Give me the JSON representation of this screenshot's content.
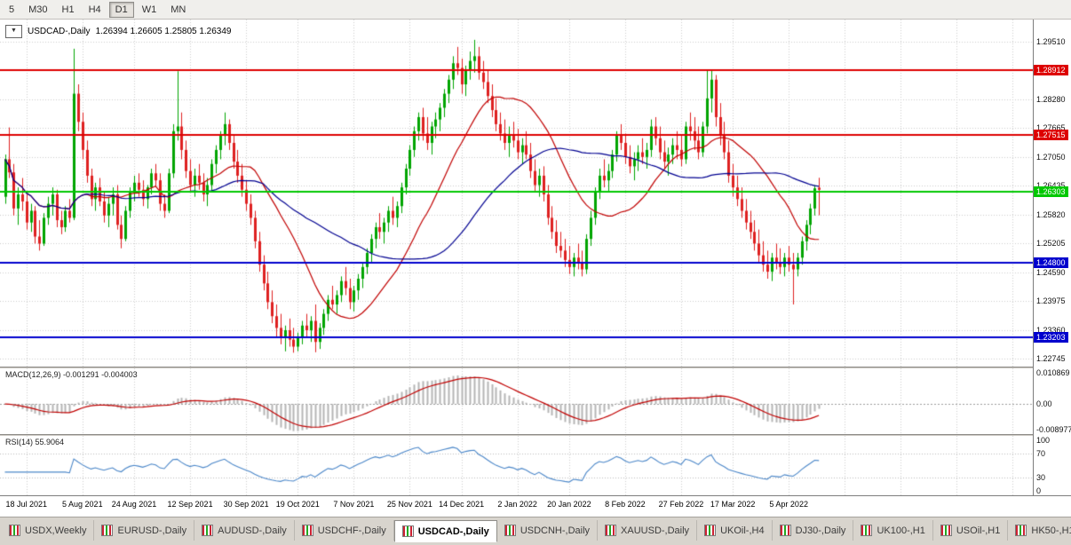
{
  "toolbar": {
    "timeframe_buttons": [
      {
        "label": "5",
        "active": false
      },
      {
        "label": "M30",
        "active": false
      },
      {
        "label": "H1",
        "active": false
      },
      {
        "label": "H4",
        "active": false
      },
      {
        "label": "D1",
        "active": true
      },
      {
        "label": "W1",
        "active": false
      },
      {
        "label": "MN",
        "active": false
      }
    ]
  },
  "chart": {
    "symbol_label": "USDCAD-,Daily",
    "ohlc_text": "1.26394 1.26605 1.25805 1.26349",
    "dropdown_icon": "▼"
  },
  "colors": {
    "candle_up": "#00a400",
    "candle_down": "#de2020",
    "grid": "#cdcdcd",
    "background": "#ffffff"
  },
  "chart_data": {
    "type": "candlestick",
    "title": "USDCAD-,Daily",
    "ylim": [
      1.22574,
      1.29984
    ],
    "price_ticks": [
      "1.29510",
      "1.28280",
      "1.27665",
      "1.27050",
      "1.26435",
      "1.25820",
      "1.25205",
      "1.24590",
      "1.23975",
      "1.23360",
      "1.22745"
    ],
    "hlines": [
      {
        "price": 1.28912,
        "label": "1.28912",
        "color": "#dd0000"
      },
      {
        "price": 1.27515,
        "label": "1.27515",
        "color": "#dd0000"
      },
      {
        "price": 1.26303,
        "label": "1.26303",
        "color": "#00c800"
      },
      {
        "price": 1.248,
        "label": "1.24800",
        "color": "#0000cd"
      },
      {
        "price": 1.23203,
        "label": "1.23203",
        "color": "#0000cd"
      }
    ],
    "date_labels": [
      "18 Jul 2021",
      "5 Aug 2021",
      "24 Aug 2021",
      "12 Sep 2021",
      "30 Sep 2021",
      "19 Oct 2021",
      "7 Nov 2021",
      "25 Nov 2021",
      "14 Dec 2021",
      "2 Jan 2022",
      "20 Jan 2022",
      "8 Feb 2022",
      "27 Feb 2022",
      "17 Mar 2022",
      "5 Apr 2022"
    ],
    "date_label_indices": [
      5,
      18,
      30,
      43,
      56,
      68,
      81,
      94,
      106,
      119,
      131,
      144,
      157,
      169,
      182
    ],
    "moving_averages": [
      {
        "period": 20,
        "color": "#c00000",
        "name": "ma-fast"
      },
      {
        "period": 45,
        "color": "#000090",
        "name": "ma-slow"
      }
    ],
    "candles": [
      [
        1.262,
        1.271,
        1.2605,
        1.27
      ],
      [
        1.27,
        1.2768,
        1.266,
        1.2672
      ],
      [
        1.2672,
        1.269,
        1.258,
        1.2595
      ],
      [
        1.2595,
        1.264,
        1.256,
        1.2625
      ],
      [
        1.2625,
        1.266,
        1.259,
        1.261
      ],
      [
        1.261,
        1.2625,
        1.255,
        1.2565
      ],
      [
        1.2565,
        1.2605,
        1.2545,
        1.259
      ],
      [
        1.259,
        1.26,
        1.252,
        1.2535
      ],
      [
        1.2535,
        1.257,
        1.2505,
        1.252
      ],
      [
        1.252,
        1.2585,
        1.2515,
        1.2575
      ],
      [
        1.2575,
        1.262,
        1.256,
        1.2605
      ],
      [
        1.2605,
        1.264,
        1.258,
        1.2625
      ],
      [
        1.2625,
        1.2635,
        1.2555,
        1.257
      ],
      [
        1.257,
        1.259,
        1.254,
        1.2555
      ],
      [
        1.2555,
        1.26,
        1.2545,
        1.259
      ],
      [
        1.259,
        1.2615,
        1.2565,
        1.2575
      ],
      [
        1.2575,
        1.2936,
        1.257,
        1.284
      ],
      [
        1.284,
        1.286,
        1.276,
        1.278
      ],
      [
        1.278,
        1.28,
        1.27,
        1.272
      ],
      [
        1.272,
        1.274,
        1.265,
        1.2665
      ],
      [
        1.2665,
        1.268,
        1.26,
        1.2615
      ],
      [
        1.2615,
        1.265,
        1.259,
        1.264
      ],
      [
        1.264,
        1.266,
        1.26,
        1.261
      ],
      [
        1.261,
        1.263,
        1.2565,
        1.258
      ],
      [
        1.258,
        1.262,
        1.2555,
        1.2605
      ],
      [
        1.2605,
        1.264,
        1.258,
        1.2625
      ],
      [
        1.2625,
        1.2645,
        1.255,
        1.256
      ],
      [
        1.256,
        1.258,
        1.251,
        1.253
      ],
      [
        1.253,
        1.26,
        1.2525,
        1.259
      ],
      [
        1.259,
        1.264,
        1.2575,
        1.263
      ],
      [
        1.263,
        1.2665,
        1.261,
        1.265
      ],
      [
        1.265,
        1.267,
        1.262,
        1.2635
      ],
      [
        1.2635,
        1.2655,
        1.26,
        1.2615
      ],
      [
        1.2615,
        1.2645,
        1.2595,
        1.264
      ],
      [
        1.264,
        1.268,
        1.2625,
        1.267
      ],
      [
        1.267,
        1.269,
        1.264,
        1.2655
      ],
      [
        1.2655,
        1.267,
        1.259,
        1.2605
      ],
      [
        1.2605,
        1.2625,
        1.2575,
        1.259
      ],
      [
        1.259,
        1.268,
        1.2585,
        1.267
      ],
      [
        1.267,
        1.2775,
        1.266,
        1.276
      ],
      [
        1.276,
        1.2888,
        1.274,
        1.277
      ],
      [
        1.277,
        1.28,
        1.27,
        1.272
      ],
      [
        1.272,
        1.274,
        1.266,
        1.2675
      ],
      [
        1.2675,
        1.27,
        1.263,
        1.2645
      ],
      [
        1.2645,
        1.268,
        1.262,
        1.2665
      ],
      [
        1.2665,
        1.269,
        1.2635,
        1.265
      ],
      [
        1.265,
        1.267,
        1.261,
        1.2625
      ],
      [
        1.2625,
        1.266,
        1.26,
        1.2645
      ],
      [
        1.2645,
        1.27,
        1.263,
        1.269
      ],
      [
        1.269,
        1.273,
        1.267,
        1.272
      ],
      [
        1.272,
        1.276,
        1.27,
        1.275
      ],
      [
        1.275,
        1.28,
        1.273,
        1.2775
      ],
      [
        1.2775,
        1.2785,
        1.272,
        1.2735
      ],
      [
        1.2735,
        1.275,
        1.268,
        1.2695
      ],
      [
        1.2695,
        1.272,
        1.265,
        1.2665
      ],
      [
        1.2665,
        1.269,
        1.262,
        1.2635
      ],
      [
        1.2635,
        1.2655,
        1.259,
        1.2605
      ],
      [
        1.2605,
        1.2625,
        1.256,
        1.2575
      ],
      [
        1.2575,
        1.259,
        1.251,
        1.2525
      ],
      [
        1.2525,
        1.2545,
        1.246,
        1.2475
      ],
      [
        1.2475,
        1.2495,
        1.242,
        1.2435
      ],
      [
        1.2435,
        1.246,
        1.238,
        1.2395
      ],
      [
        1.2395,
        1.242,
        1.235,
        1.2365
      ],
      [
        1.2365,
        1.239,
        1.232,
        1.234
      ],
      [
        1.234,
        1.237,
        1.2305,
        1.232
      ],
      [
        1.232,
        1.2345,
        1.229,
        1.2335
      ],
      [
        1.2335,
        1.236,
        1.23,
        1.2315
      ],
      [
        1.2315,
        1.234,
        1.2287,
        1.23
      ],
      [
        1.23,
        1.233,
        1.229,
        1.232
      ],
      [
        1.232,
        1.2355,
        1.2305,
        1.2345
      ],
      [
        1.2345,
        1.237,
        1.232,
        1.2335
      ],
      [
        1.2335,
        1.2365,
        1.231,
        1.2355
      ],
      [
        1.2355,
        1.239,
        1.2288,
        1.231
      ],
      [
        1.231,
        1.235,
        1.2295,
        1.234
      ],
      [
        1.234,
        1.238,
        1.2325,
        1.237
      ],
      [
        1.237,
        1.241,
        1.2355,
        1.24
      ],
      [
        1.24,
        1.243,
        1.238,
        1.239
      ],
      [
        1.239,
        1.242,
        1.237,
        1.241
      ],
      [
        1.241,
        1.245,
        1.2395,
        1.244
      ],
      [
        1.244,
        1.247,
        1.241,
        1.2425
      ],
      [
        1.2425,
        1.2445,
        1.238,
        1.2395
      ],
      [
        1.2395,
        1.243,
        1.2375,
        1.242
      ],
      [
        1.242,
        1.2455,
        1.24,
        1.2445
      ],
      [
        1.2445,
        1.248,
        1.2425,
        1.247
      ],
      [
        1.247,
        1.251,
        1.2455,
        1.25
      ],
      [
        1.25,
        1.254,
        1.248,
        1.253
      ],
      [
        1.253,
        1.2565,
        1.251,
        1.2555
      ],
      [
        1.2555,
        1.2585,
        1.253,
        1.2545
      ],
      [
        1.2545,
        1.2575,
        1.252,
        1.2565
      ],
      [
        1.2565,
        1.26,
        1.2545,
        1.259
      ],
      [
        1.259,
        1.262,
        1.256,
        1.2575
      ],
      [
        1.2575,
        1.261,
        1.2555,
        1.26
      ],
      [
        1.26,
        1.265,
        1.2585,
        1.264
      ],
      [
        1.264,
        1.269,
        1.2625,
        1.268
      ],
      [
        1.268,
        1.273,
        1.2665,
        1.272
      ],
      [
        1.272,
        1.277,
        1.2705,
        1.276
      ],
      [
        1.276,
        1.28,
        1.274,
        1.279
      ],
      [
        1.279,
        1.281,
        1.274,
        1.2755
      ],
      [
        1.2755,
        1.279,
        1.272,
        1.2735
      ],
      [
        1.2735,
        1.278,
        1.271,
        1.277
      ],
      [
        1.277,
        1.28,
        1.2745,
        1.2785
      ],
      [
        1.2785,
        1.282,
        1.276,
        1.281
      ],
      [
        1.281,
        1.285,
        1.279,
        1.284
      ],
      [
        1.284,
        1.288,
        1.282,
        1.287
      ],
      [
        1.287,
        1.292,
        1.285,
        1.2905
      ],
      [
        1.2905,
        1.294,
        1.288,
        1.2895
      ],
      [
        1.2895,
        1.2915,
        1.284,
        1.286
      ],
      [
        1.286,
        1.29,
        1.2835,
        1.289
      ],
      [
        1.289,
        1.293,
        1.287,
        1.291
      ],
      [
        1.291,
        1.2955,
        1.2885,
        1.292
      ],
      [
        1.292,
        1.294,
        1.287,
        1.2885
      ],
      [
        1.2885,
        1.291,
        1.285,
        1.2865
      ],
      [
        1.2865,
        1.289,
        1.282,
        1.2835
      ],
      [
        1.2835,
        1.286,
        1.279,
        1.2805
      ],
      [
        1.2805,
        1.283,
        1.276,
        1.2775
      ],
      [
        1.2775,
        1.28,
        1.274,
        1.2755
      ],
      [
        1.2755,
        1.2785,
        1.272,
        1.2735
      ],
      [
        1.2735,
        1.277,
        1.2705,
        1.275
      ],
      [
        1.275,
        1.278,
        1.2725,
        1.274
      ],
      [
        1.274,
        1.2765,
        1.27,
        1.2715
      ],
      [
        1.2715,
        1.2745,
        1.269,
        1.273
      ],
      [
        1.273,
        1.276,
        1.27,
        1.271
      ],
      [
        1.271,
        1.2735,
        1.266,
        1.2675
      ],
      [
        1.2675,
        1.27,
        1.263,
        1.2645
      ],
      [
        1.2645,
        1.268,
        1.262,
        1.2665
      ],
      [
        1.2665,
        1.2685,
        1.261,
        1.2625
      ],
      [
        1.2625,
        1.2645,
        1.256,
        1.2575
      ],
      [
        1.2575,
        1.26,
        1.253,
        1.2545
      ],
      [
        1.2545,
        1.257,
        1.25,
        1.2515
      ],
      [
        1.2515,
        1.2545,
        1.249,
        1.2505
      ],
      [
        1.2505,
        1.253,
        1.247,
        1.2485
      ],
      [
        1.2485,
        1.2515,
        1.2455,
        1.247
      ],
      [
        1.247,
        1.25,
        1.245,
        1.249
      ],
      [
        1.249,
        1.252,
        1.2465,
        1.248
      ],
      [
        1.248,
        1.2505,
        1.245,
        1.2465
      ],
      [
        1.2465,
        1.254,
        1.2455,
        1.253
      ],
      [
        1.253,
        1.259,
        1.2515,
        1.2575
      ],
      [
        1.2575,
        1.264,
        1.256,
        1.263
      ],
      [
        1.263,
        1.268,
        1.2615,
        1.2665
      ],
      [
        1.2665,
        1.27,
        1.264,
        1.2655
      ],
      [
        1.2655,
        1.269,
        1.263,
        1.2675
      ],
      [
        1.2675,
        1.272,
        1.266,
        1.271
      ],
      [
        1.271,
        1.276,
        1.2695,
        1.275
      ],
      [
        1.275,
        1.2775,
        1.272,
        1.2735
      ],
      [
        1.2735,
        1.2755,
        1.269,
        1.2705
      ],
      [
        1.2705,
        1.273,
        1.267,
        1.2685
      ],
      [
        1.2685,
        1.2715,
        1.2655,
        1.27
      ],
      [
        1.27,
        1.273,
        1.2675,
        1.2715
      ],
      [
        1.2715,
        1.2745,
        1.269,
        1.2705
      ],
      [
        1.2705,
        1.2735,
        1.268,
        1.272
      ],
      [
        1.272,
        1.2785,
        1.2705,
        1.277
      ],
      [
        1.277,
        1.279,
        1.273,
        1.2745
      ],
      [
        1.2745,
        1.277,
        1.27,
        1.2715
      ],
      [
        1.2715,
        1.274,
        1.268,
        1.2695
      ],
      [
        1.2695,
        1.2725,
        1.2665,
        1.271
      ],
      [
        1.271,
        1.2745,
        1.269,
        1.273
      ],
      [
        1.273,
        1.276,
        1.27,
        1.272
      ],
      [
        1.272,
        1.275,
        1.2685,
        1.27
      ],
      [
        1.27,
        1.278,
        1.269,
        1.277
      ],
      [
        1.277,
        1.28,
        1.274,
        1.276
      ],
      [
        1.276,
        1.279,
        1.272,
        1.274
      ],
      [
        1.274,
        1.277,
        1.27,
        1.2715
      ],
      [
        1.2715,
        1.278,
        1.2705,
        1.277
      ],
      [
        1.277,
        1.2892,
        1.2755,
        1.283
      ],
      [
        1.283,
        1.2889,
        1.28,
        1.287
      ],
      [
        1.287,
        1.288,
        1.277,
        1.279
      ],
      [
        1.279,
        1.282,
        1.273,
        1.275
      ],
      [
        1.275,
        1.278,
        1.27,
        1.2715
      ],
      [
        1.2715,
        1.274,
        1.265,
        1.2665
      ],
      [
        1.2665,
        1.269,
        1.262,
        1.264
      ],
      [
        1.264,
        1.2665,
        1.26,
        1.2615
      ],
      [
        1.2615,
        1.264,
        1.2575,
        1.259
      ],
      [
        1.259,
        1.2615,
        1.255,
        1.2565
      ],
      [
        1.2565,
        1.259,
        1.253,
        1.2545
      ],
      [
        1.2545,
        1.257,
        1.2505,
        1.252
      ],
      [
        1.252,
        1.255,
        1.248,
        1.2495
      ],
      [
        1.2495,
        1.2525,
        1.246,
        1.2475
      ],
      [
        1.2475,
        1.2505,
        1.2445,
        1.246
      ],
      [
        1.246,
        1.25,
        1.244,
        1.249
      ],
      [
        1.249,
        1.252,
        1.2465,
        1.248
      ],
      [
        1.248,
        1.251,
        1.2455,
        1.247
      ],
      [
        1.247,
        1.25,
        1.245,
        1.249
      ],
      [
        1.249,
        1.2515,
        1.246,
        1.2475
      ],
      [
        1.2475,
        1.25,
        1.239,
        1.2465
      ],
      [
        1.2465,
        1.25,
        1.245,
        1.249
      ],
      [
        1.249,
        1.2535,
        1.2475,
        1.2525
      ],
      [
        1.2525,
        1.257,
        1.2505,
        1.256
      ],
      [
        1.256,
        1.2605,
        1.254,
        1.2595
      ],
      [
        1.2595,
        1.2645,
        1.258,
        1.2638
      ],
      [
        1.26394,
        1.26605,
        1.25805,
        1.26349
      ]
    ],
    "indicators": {
      "macd": {
        "label": "MACD(12,26,9)",
        "values_text": "-0.001291 -0.004003",
        "fast": 12,
        "slow": 26,
        "signal": 9,
        "axis_labels": [
          "0.010869",
          "0.00",
          "-0.008977"
        ],
        "ylim": [
          -0.0105,
          0.0125
        ],
        "histogram_color": "#b4b4b4",
        "signal_color": "#c00000"
      },
      "rsi": {
        "label": "RSI(14)",
        "value_text": "55.9064",
        "period": 14,
        "axis_labels": [
          "100",
          "70",
          "30",
          "0"
        ],
        "levels": [
          70,
          30
        ],
        "line_color": "#4a86c8"
      }
    }
  },
  "tabs": [
    {
      "label": "USDX,Weekly",
      "active": false
    },
    {
      "label": "EURUSD-,Daily",
      "active": false
    },
    {
      "label": "AUDUSD-,Daily",
      "active": false
    },
    {
      "label": "USDCHF-,Daily",
      "active": false
    },
    {
      "label": "USDCAD-,Daily",
      "active": true
    },
    {
      "label": "USDCNH-,Daily",
      "active": false
    },
    {
      "label": "XAUUSD-,Daily",
      "active": false
    },
    {
      "label": "UKOil-,H4",
      "active": false
    },
    {
      "label": "DJ30-,Daily",
      "active": false
    },
    {
      "label": "UK100-,H1",
      "active": false
    },
    {
      "label": "USOil-,H1",
      "active": false
    },
    {
      "label": "HK50-,H1",
      "active": false
    }
  ]
}
